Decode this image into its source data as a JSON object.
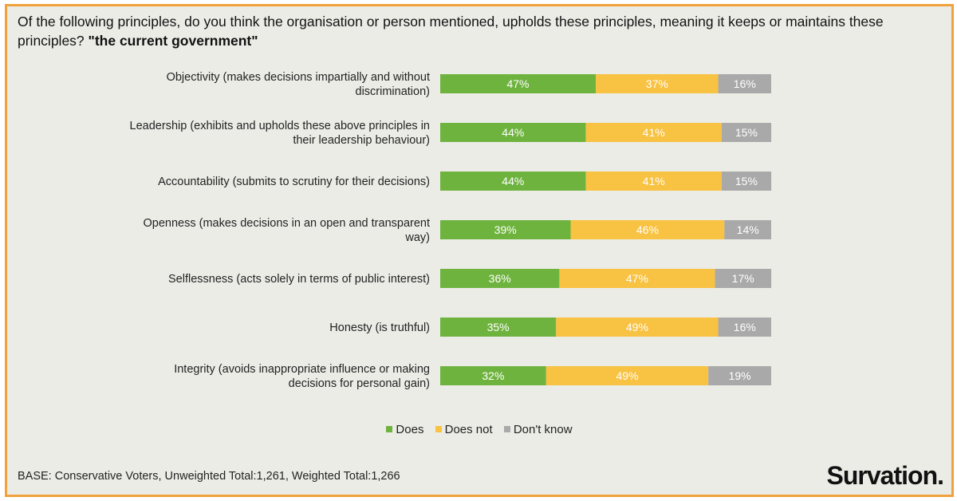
{
  "title": {
    "text": "Of the following principles, do you think the organisation or person mentioned, upholds these principles, meaning it keeps or maintains these principles?",
    "emphasis": "\"the current government\""
  },
  "chart_data": {
    "type": "bar",
    "orientation": "horizontal",
    "stacked": true,
    "categories": [
      "Objectivity (makes decisions impartially and without discrimination)",
      "Leadership (exhibits and upholds these above principles in their leadership behaviour)",
      "Accountability (submits to scrutiny for their decisions)",
      "Openness (makes decisions in an open and transparent way)",
      "Selflessness (acts solely in terms of public interest)",
      "Honesty (is truthful)",
      "Integrity (avoids inappropriate influence or making decisions for personal gain)"
    ],
    "category_lines": [
      [
        "Objectivity (makes decisions impartially and without",
        "discrimination)"
      ],
      [
        "Leadership (exhibits and upholds these above principles in",
        "their leadership behaviour)"
      ],
      [
        "Accountability (submits to scrutiny for their decisions)"
      ],
      [
        "Openness (makes decisions in an open and transparent",
        "way)"
      ],
      [
        "Selflessness (acts solely in terms of public interest)"
      ],
      [
        "Honesty (is truthful)"
      ],
      [
        "Integrity (avoids inappropriate influence or making",
        "decisions for personal gain)"
      ]
    ],
    "series": [
      {
        "name": "Does",
        "color": "#6fb33f",
        "values": [
          47,
          44,
          44,
          39,
          36,
          35,
          32
        ]
      },
      {
        "name": "Does not",
        "color": "#f8c242",
        "values": [
          37,
          41,
          41,
          46,
          47,
          49,
          49
        ]
      },
      {
        "name": "Don't know",
        "color": "#a9a9a9",
        "values": [
          16,
          15,
          15,
          14,
          17,
          16,
          19
        ]
      }
    ],
    "value_suffix": "%",
    "legend_position": "bottom",
    "grid": false
  },
  "footer": {
    "base": "BASE: Conservative Voters, Unweighted Total:1,261, Weighted Total:1,266",
    "logo": "Survation."
  }
}
